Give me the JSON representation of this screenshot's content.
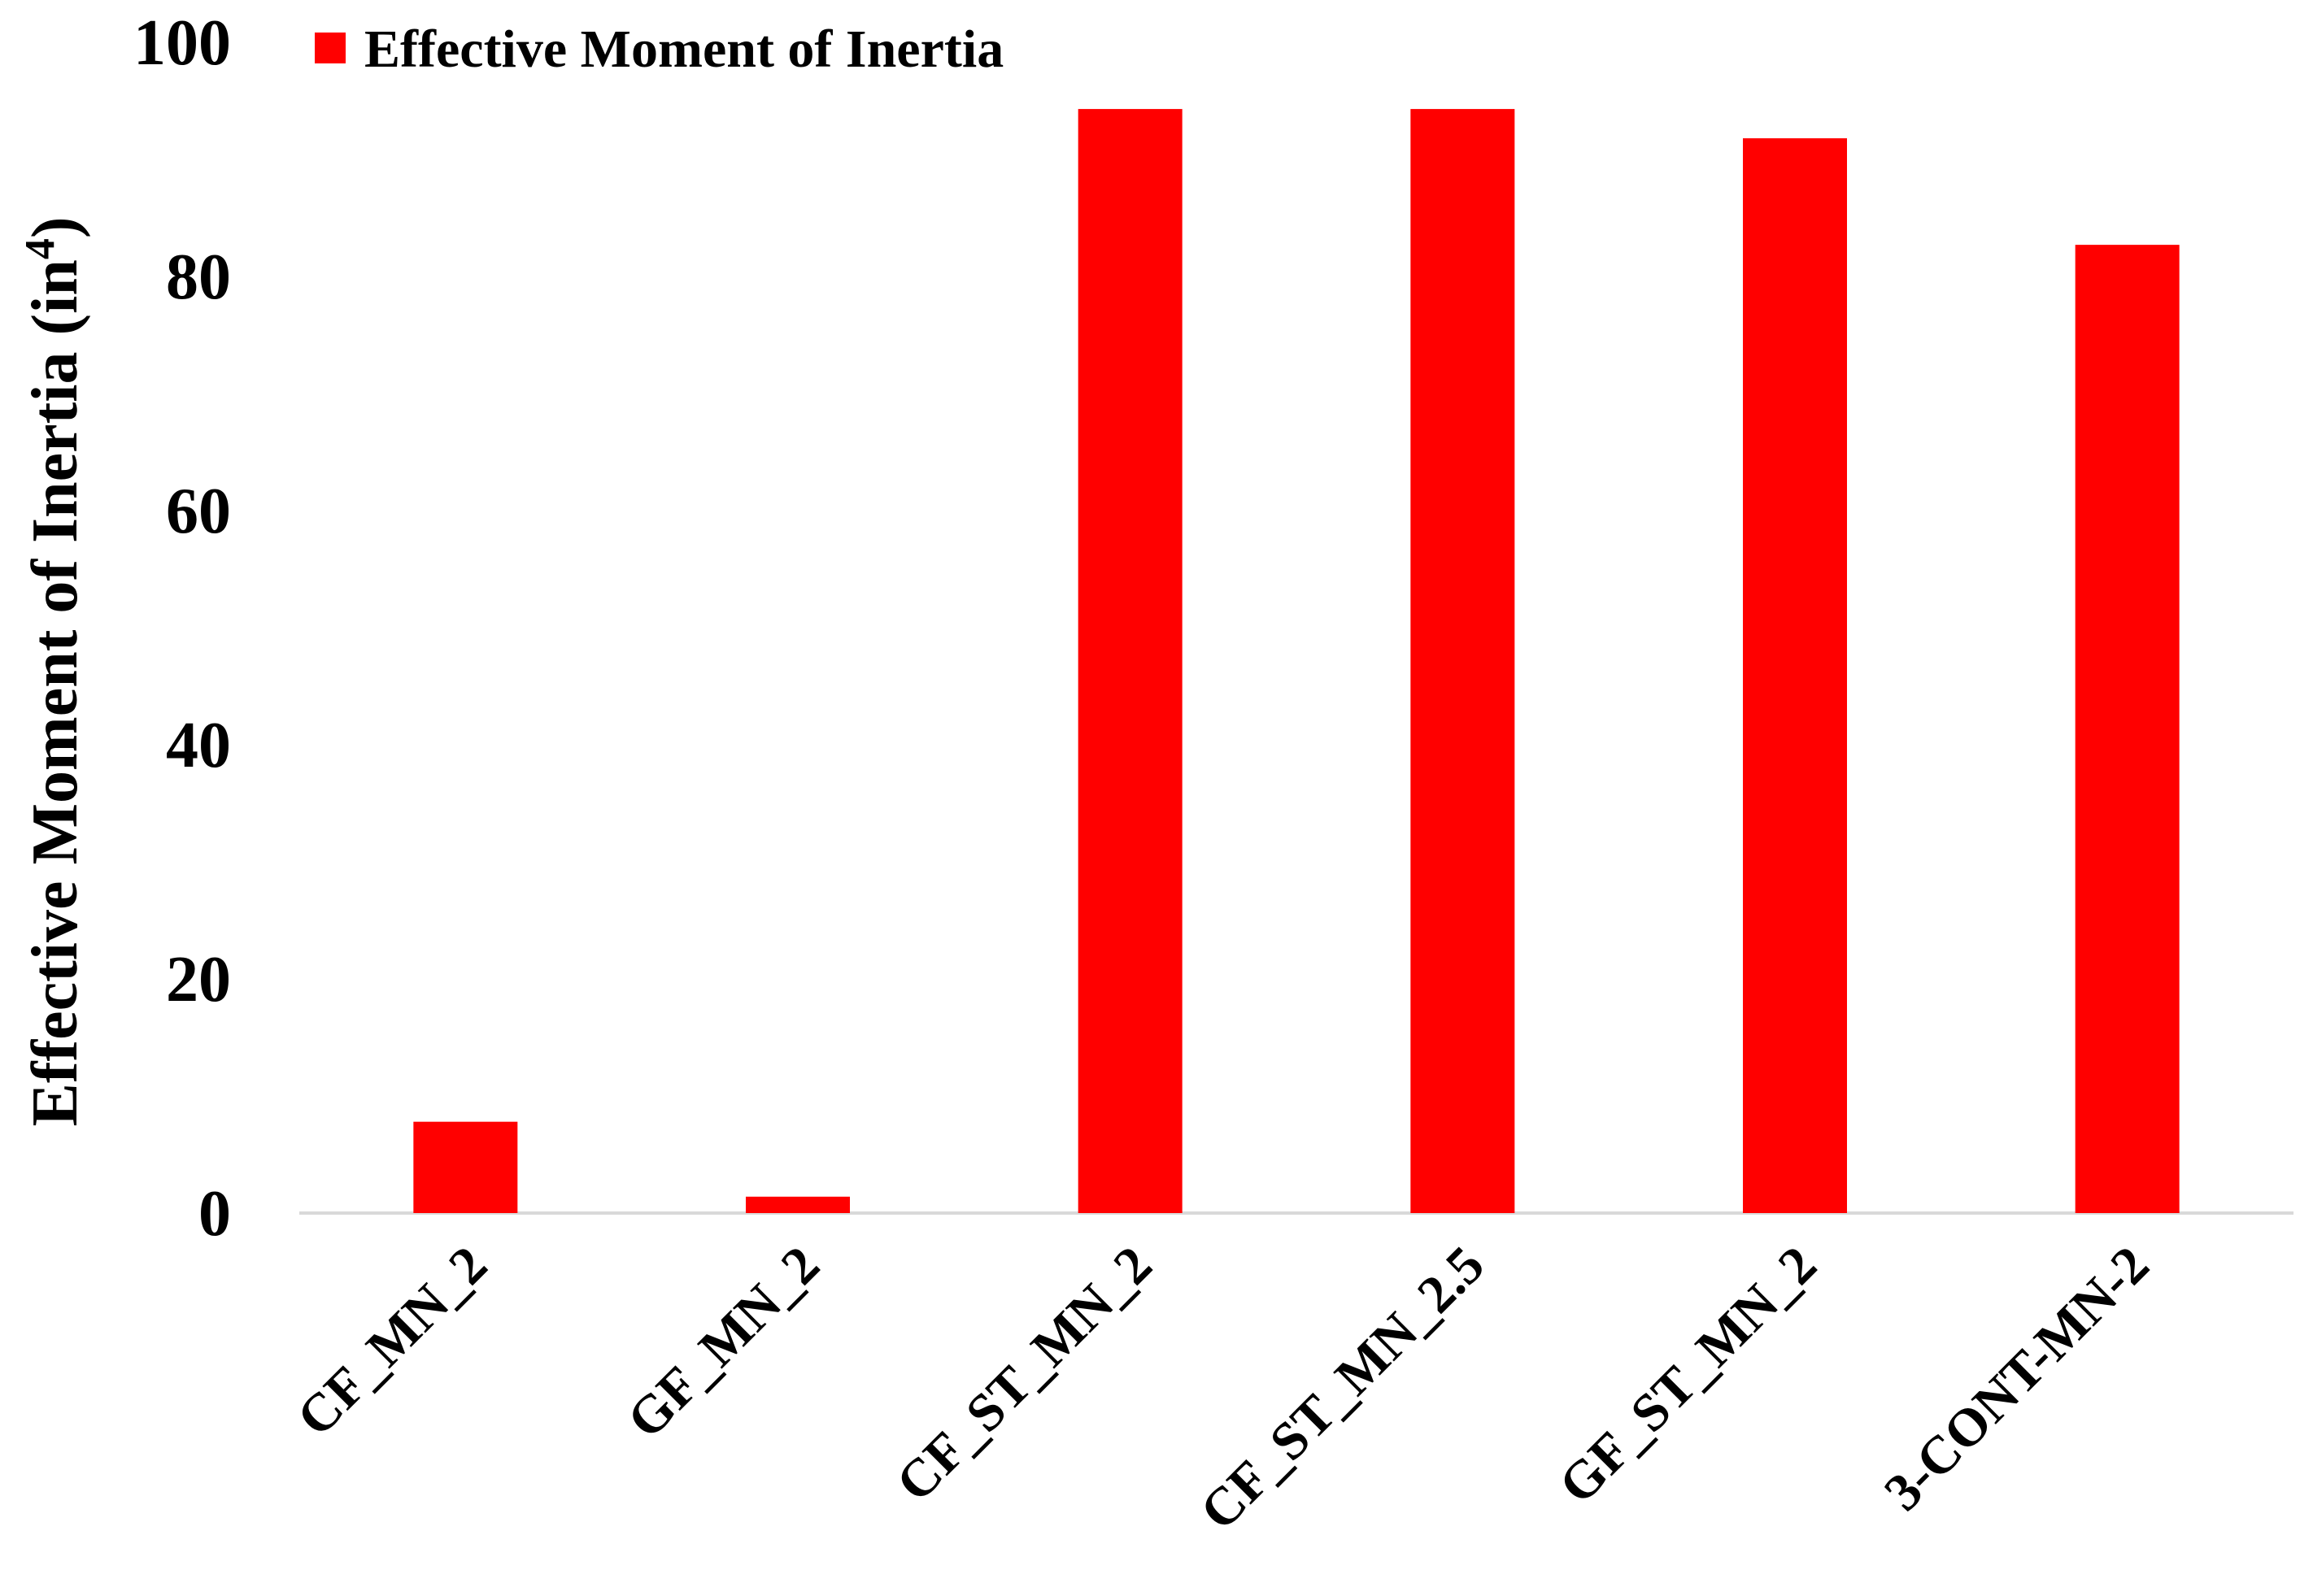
{
  "chart_data": {
    "type": "bar",
    "categories": [
      "CF_MN_2",
      "GF_MN_2",
      "CF_ST_MN_2",
      "CF_ST_MN_2.5",
      "GF_ST_MN_2",
      "3-CONT-MN-2"
    ],
    "series": [
      {
        "name": "Effective Moment of Inertia",
        "values": [
          7.8,
          1.4,
          94.3,
          94.3,
          91.8,
          82.7
        ]
      }
    ],
    "ylabel": "Effective Moment of Inertia (in",
    "ylabel_superscript": "4",
    "ylabel_close": ")",
    "ylim": [
      0,
      100
    ],
    "yticks": [
      "0",
      "20",
      "40",
      "60",
      "80",
      "100"
    ],
    "grid": false,
    "legend_position": "top",
    "bar_color": "#FF0000",
    "axis_color": "#D9D9D9"
  }
}
